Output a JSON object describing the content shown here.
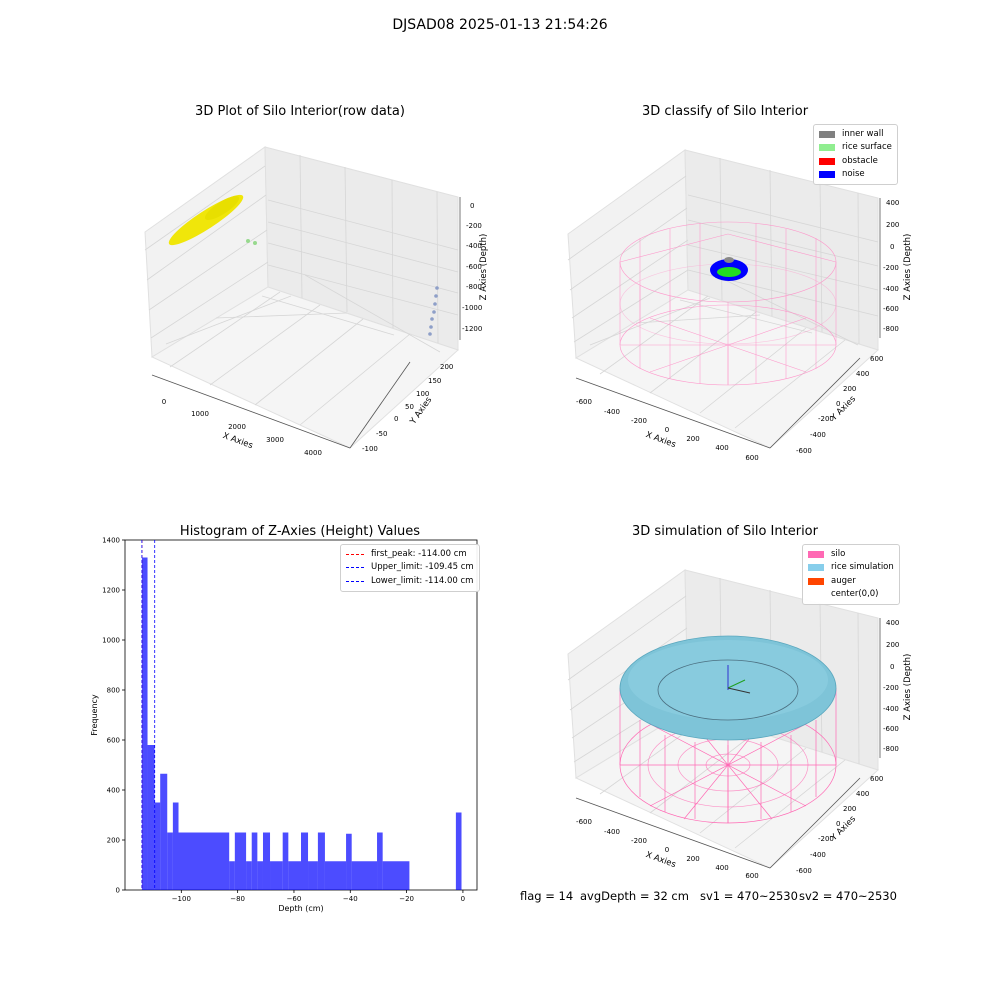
{
  "suptitle": "DJSAD08 2025-01-13 21:54:26",
  "panels": {
    "raw": {
      "title": "3D Plot of Silo Interior(row data)",
      "xlabel": "X Axies",
      "ylabel": "Y Axies",
      "zlabel": "Z Axies (Depth)",
      "xticks": [
        "0",
        "1000",
        "2000",
        "3000",
        "4000"
      ],
      "yticks": [
        "-100",
        "-50",
        "0",
        "50",
        "100",
        "150",
        "200"
      ],
      "zticks": [
        "0",
        "-200",
        "-400",
        "-600",
        "-800",
        "-1000",
        "-1200"
      ]
    },
    "classify": {
      "title": "3D classify of Silo Interior",
      "xlabel": "X Axies",
      "ylabel": "Y Axies",
      "zlabel": "Z Axies (Depth)",
      "xticks": [
        "-600",
        "-400",
        "-200",
        "0",
        "200",
        "400",
        "600"
      ],
      "yticks": [
        "-600",
        "-400",
        "-200",
        "0",
        "200",
        "400",
        "600"
      ],
      "zticks": [
        "400",
        "200",
        "0",
        "-200",
        "-400",
        "-600",
        "-800"
      ],
      "legend": [
        {
          "label": "inner wall",
          "color": "#808080"
        },
        {
          "label": "rice surface",
          "color": "#90ee90"
        },
        {
          "label": "obstacle",
          "color": "#ff0000"
        },
        {
          "label": "noise",
          "color": "#0000ff"
        }
      ]
    },
    "simulation": {
      "title": "3D simulation of Silo Interior",
      "xlabel": "X Axies",
      "ylabel": "Y Axies",
      "zlabel": "Z Axies (Depth)",
      "xticks": [
        "-600",
        "-400",
        "-200",
        "0",
        "200",
        "400",
        "600"
      ],
      "yticks": [
        "-600",
        "-400",
        "-200",
        "0",
        "200",
        "400",
        "600"
      ],
      "zticks": [
        "400",
        "200",
        "0",
        "-200",
        "-400",
        "-600",
        "-800"
      ],
      "legend": [
        {
          "label": "silo",
          "color": "#ff69b4"
        },
        {
          "label": "rice simulation",
          "color": "#87ceeb"
        },
        {
          "label": "auger",
          "color": "#ff4500"
        },
        {
          "label": "center(0,0)",
          "color": ""
        }
      ]
    }
  },
  "chart_data": {
    "type": "bar",
    "title": "Histogram of Z-Axies (Height) Values",
    "xlabel": "Depth (cm)",
    "ylabel": "Frequency",
    "xlim": [
      -120,
      5
    ],
    "ylim": [
      0,
      1400
    ],
    "xticks": [
      -100,
      -80,
      -60,
      -40,
      -20,
      0
    ],
    "yticks": [
      0,
      200,
      400,
      600,
      800,
      1000,
      1200,
      1400
    ],
    "bar_color": "#0000ff",
    "bins": [
      {
        "x0": -114,
        "x1": -112,
        "value": 1330
      },
      {
        "x0": -112,
        "x1": -109.5,
        "value": 580
      },
      {
        "x0": -109.5,
        "x1": -107.5,
        "value": 350
      },
      {
        "x0": -107.5,
        "x1": -105,
        "value": 465
      },
      {
        "x0": -105,
        "x1": -103,
        "value": 230
      },
      {
        "x0": -103,
        "x1": -101,
        "value": 350
      },
      {
        "x0": -101,
        "x1": -83,
        "value": 230
      },
      {
        "x0": -83,
        "x1": -81,
        "value": 115
      },
      {
        "x0": -81,
        "x1": -77,
        "value": 230
      },
      {
        "x0": -77,
        "x1": -75,
        "value": 115
      },
      {
        "x0": -75,
        "x1": -73,
        "value": 230
      },
      {
        "x0": -73,
        "x1": -71,
        "value": 115
      },
      {
        "x0": -71,
        "x1": -68.5,
        "value": 230
      },
      {
        "x0": -68.5,
        "x1": -64,
        "value": 115
      },
      {
        "x0": -64,
        "x1": -62,
        "value": 230
      },
      {
        "x0": -62,
        "x1": -57.5,
        "value": 115
      },
      {
        "x0": -57.5,
        "x1": -55,
        "value": 230
      },
      {
        "x0": -55,
        "x1": -51.5,
        "value": 115
      },
      {
        "x0": -51.5,
        "x1": -49,
        "value": 230
      },
      {
        "x0": -49,
        "x1": -41.5,
        "value": 115
      },
      {
        "x0": -41.5,
        "x1": -39.5,
        "value": 225
      },
      {
        "x0": -39.5,
        "x1": -30.5,
        "value": 115
      },
      {
        "x0": -30.5,
        "x1": -28.5,
        "value": 230
      },
      {
        "x0": -28.5,
        "x1": -19,
        "value": 115
      },
      {
        "x0": -2.5,
        "x1": -0.5,
        "value": 310
      }
    ],
    "reference_lines": [
      {
        "label": "first_peak: -114.00 cm",
        "x": -114.0,
        "color": "#ff0000"
      },
      {
        "label": "Upper_limit: -109.45 cm",
        "x": -109.45,
        "color": "#0000ff"
      },
      {
        "label": "Lower_limit: -114.00 cm",
        "x": -114.0,
        "color": "#0000ff"
      }
    ]
  },
  "footer": {
    "flag": "flag = 14",
    "avg_depth": "avgDepth = 32 cm",
    "sv1": "sv1 = 470~2530",
    "sv2": "sv2 = 470~2530"
  }
}
